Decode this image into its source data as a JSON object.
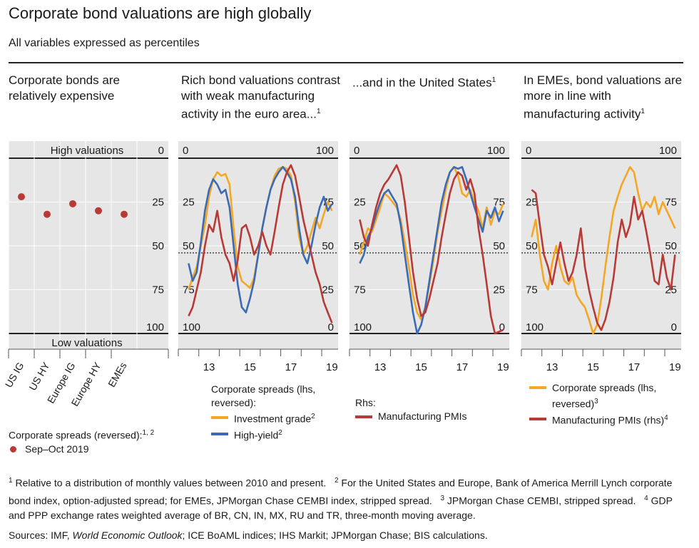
{
  "title": "Corporate bond valuations are high globally",
  "subtitle": "All variables expressed as percentiles",
  "colors": {
    "orange": "#F5A623",
    "blue": "#3A6BB4",
    "red": "#B73A36",
    "panel_bg": "#e6e6e6"
  },
  "panels": [
    {
      "title": "Corporate bonds are relatively expensive",
      "sup": ""
    },
    {
      "title": "Rich bond valuations contrast with weak manufacturing activity in the euro area...",
      "sup": "1"
    },
    {
      "title": "...and in the United States",
      "sup": "1"
    },
    {
      "title": "In EMEs, bond valuations are more in line with manufacturing activity",
      "sup": "1"
    }
  ],
  "panel1": {
    "top_label": "High valuations",
    "bottom_label": "Low valuations",
    "legend_title": "Corporate spreads (reversed):",
    "legend_title_sup": "1, 2",
    "legend_item": "Sep–Oct 2019"
  },
  "panel2_legend": {
    "header": "Corporate spreads (lhs, reversed):",
    "items": [
      {
        "label": "Investment grade",
        "sup": "2"
      },
      {
        "label": "High-yield",
        "sup": "2"
      }
    ]
  },
  "panel3_legend": {
    "header": "Rhs:",
    "items": [
      {
        "label": "Manufacturing PMIs",
        "sup": ""
      }
    ]
  },
  "panel4_legend": {
    "items": [
      {
        "label": "Corporate spreads (lhs, reversed)",
        "sup": "3"
      },
      {
        "label": "Manufacturing PMIs (rhs)",
        "sup": "4"
      }
    ]
  },
  "chart_data": [
    {
      "type": "scatter",
      "categories": [
        "US IG",
        "US HY",
        "Europe IG",
        "Europe HY",
        "EMEs"
      ],
      "series": [
        {
          "name": "Sep–Oct 2019",
          "values": [
            22,
            32,
            26,
            30,
            32
          ]
        }
      ],
      "ylim": [
        0,
        100
      ],
      "y_reversed": true,
      "y_ticks": [
        "0",
        "25",
        "50",
        "75",
        "100"
      ]
    },
    {
      "type": "line",
      "x_ticks": [
        "13",
        "15",
        "17",
        "19"
      ],
      "xlim": [
        2012,
        2019.8
      ],
      "lhs_ticks": [
        "0",
        "25",
        "50",
        "75",
        "100"
      ],
      "rhs_ticks": [
        "100",
        "75",
        "50",
        "25",
        "0"
      ],
      "lhs_reversed": true,
      "reference_line_lhs": 54,
      "series": [
        {
          "name": "Investment grade",
          "axis": "lhs",
          "color": "orange",
          "x": [
            2012.5,
            2012.7,
            2012.9,
            2013.1,
            2013.3,
            2013.5,
            2013.7,
            2013.9,
            2014.1,
            2014.3,
            2014.5,
            2014.7,
            2014.9,
            2015.1,
            2015.3,
            2015.5,
            2015.7,
            2015.9,
            2016.1,
            2016.3,
            2016.5,
            2016.7,
            2016.9,
            2017.1,
            2017.3,
            2017.5,
            2017.7,
            2017.9,
            2018.1,
            2018.3,
            2018.5,
            2018.7,
            2018.9,
            2019.1,
            2019.3,
            2019.5
          ],
          "y": [
            75,
            68,
            62,
            50,
            38,
            22,
            12,
            8,
            10,
            9,
            15,
            40,
            62,
            70,
            72,
            74,
            68,
            55,
            40,
            28,
            18,
            10,
            6,
            5,
            6,
            10,
            25,
            45,
            55,
            50,
            42,
            34,
            40,
            32,
            25,
            30
          ]
        },
        {
          "name": "High-yield",
          "axis": "lhs",
          "color": "blue",
          "x": [
            2012.5,
            2012.7,
            2012.9,
            2013.1,
            2013.3,
            2013.5,
            2013.7,
            2013.9,
            2014.1,
            2014.3,
            2014.5,
            2014.7,
            2014.9,
            2015.1,
            2015.3,
            2015.5,
            2015.7,
            2015.9,
            2016.1,
            2016.3,
            2016.5,
            2016.7,
            2016.9,
            2017.1,
            2017.3,
            2017.5,
            2017.7,
            2017.9,
            2018.1,
            2018.3,
            2018.5,
            2018.7,
            2018.9,
            2019.1,
            2019.3,
            2019.5
          ],
          "y": [
            60,
            70,
            65,
            48,
            30,
            18,
            12,
            15,
            20,
            18,
            28,
            50,
            72,
            85,
            88,
            80,
            70,
            55,
            40,
            28,
            18,
            12,
            8,
            5,
            8,
            12,
            22,
            40,
            55,
            60,
            50,
            38,
            28,
            22,
            30,
            26
          ]
        },
        {
          "name": "Manufacturing PMIs",
          "axis": "rhs",
          "color": "red",
          "x": [
            2012.5,
            2012.7,
            2012.9,
            2013.1,
            2013.3,
            2013.5,
            2013.7,
            2013.9,
            2014.1,
            2014.3,
            2014.5,
            2014.7,
            2014.9,
            2015.1,
            2015.3,
            2015.5,
            2015.7,
            2015.9,
            2016.1,
            2016.3,
            2016.5,
            2016.7,
            2016.9,
            2017.1,
            2017.3,
            2017.5,
            2017.7,
            2017.9,
            2018.1,
            2018.3,
            2018.5,
            2018.7,
            2018.9,
            2019.1,
            2019.3,
            2019.5
          ],
          "y": [
            10,
            15,
            25,
            35,
            50,
            62,
            58,
            70,
            55,
            45,
            40,
            30,
            42,
            60,
            62,
            55,
            45,
            50,
            58,
            50,
            45,
            58,
            72,
            85,
            92,
            96,
            90,
            78,
            65,
            55,
            45,
            35,
            28,
            18,
            12,
            6
          ]
        }
      ]
    },
    {
      "type": "line",
      "x_ticks": [
        "13",
        "15",
        "17",
        "19"
      ],
      "xlim": [
        2012,
        2019.8
      ],
      "lhs_ticks": [
        "0",
        "25",
        "50",
        "75",
        "100"
      ],
      "rhs_ticks": [
        "100",
        "75",
        "50",
        "25",
        "0"
      ],
      "lhs_reversed": true,
      "reference_line_lhs": 54,
      "series": [
        {
          "name": "Investment grade",
          "axis": "lhs",
          "color": "orange",
          "x": [
            2012.5,
            2012.7,
            2012.9,
            2013.1,
            2013.3,
            2013.5,
            2013.7,
            2013.9,
            2014.1,
            2014.3,
            2014.5,
            2014.7,
            2014.9,
            2015.1,
            2015.3,
            2015.5,
            2015.7,
            2015.9,
            2016.1,
            2016.3,
            2016.5,
            2016.7,
            2016.9,
            2017.1,
            2017.3,
            2017.5,
            2017.7,
            2017.9,
            2018.1,
            2018.3,
            2018.5,
            2018.7,
            2018.9,
            2019.1,
            2019.3,
            2019.5
          ],
          "y": [
            55,
            48,
            40,
            42,
            35,
            28,
            20,
            22,
            25,
            28,
            35,
            48,
            62,
            78,
            88,
            92,
            85,
            72,
            58,
            42,
            30,
            18,
            8,
            5,
            10,
            20,
            22,
            18,
            25,
            30,
            40,
            28,
            38,
            30,
            32,
            26
          ]
        },
        {
          "name": "High-yield",
          "axis": "lhs",
          "color": "blue",
          "x": [
            2012.5,
            2012.7,
            2012.9,
            2013.1,
            2013.3,
            2013.5,
            2013.7,
            2013.9,
            2014.1,
            2014.3,
            2014.5,
            2014.7,
            2014.9,
            2015.1,
            2015.3,
            2015.5,
            2015.7,
            2015.9,
            2016.1,
            2016.3,
            2016.5,
            2016.7,
            2016.9,
            2017.1,
            2017.3,
            2017.5,
            2017.7,
            2017.9,
            2018.1,
            2018.3,
            2018.5,
            2018.7,
            2018.9,
            2019.1,
            2019.3,
            2019.5
          ],
          "y": [
            60,
            55,
            45,
            40,
            32,
            25,
            20,
            18,
            22,
            26,
            38,
            55,
            72,
            88,
            100,
            95,
            85,
            70,
            55,
            40,
            25,
            15,
            8,
            5,
            6,
            5,
            12,
            20,
            28,
            35,
            42,
            30,
            34,
            28,
            36,
            30
          ]
        },
        {
          "name": "Manufacturing PMIs",
          "axis": "rhs",
          "color": "red",
          "x": [
            2012.5,
            2012.7,
            2012.9,
            2013.1,
            2013.3,
            2013.5,
            2013.7,
            2013.9,
            2014.1,
            2014.3,
            2014.5,
            2014.7,
            2014.9,
            2015.1,
            2015.3,
            2015.5,
            2015.7,
            2015.9,
            2016.1,
            2016.3,
            2016.5,
            2016.7,
            2016.9,
            2017.1,
            2017.3,
            2017.5,
            2017.7,
            2017.9,
            2018.1,
            2018.3,
            2018.5,
            2018.7,
            2018.9,
            2019.1,
            2019.3,
            2019.5
          ],
          "y": [
            65,
            55,
            50,
            62,
            72,
            80,
            85,
            88,
            92,
            96,
            90,
            75,
            55,
            35,
            20,
            10,
            12,
            20,
            30,
            40,
            55,
            68,
            80,
            88,
            92,
            90,
            82,
            88,
            80,
            60,
            45,
            28,
            10,
            0,
            1,
            2
          ]
        }
      ]
    },
    {
      "type": "line",
      "x_ticks": [
        "13",
        "15",
        "17",
        "19"
      ],
      "xlim": [
        2012,
        2019.8
      ],
      "lhs_ticks": [
        "0",
        "25",
        "50",
        "75",
        "100"
      ],
      "rhs_ticks": [
        "100",
        "75",
        "50",
        "25",
        "0"
      ],
      "lhs_reversed": true,
      "reference_line_lhs": 54,
      "series": [
        {
          "name": "Corporate spreads",
          "axis": "lhs",
          "color": "orange",
          "x": [
            2012.5,
            2012.7,
            2012.9,
            2013.1,
            2013.3,
            2013.5,
            2013.7,
            2013.9,
            2014.1,
            2014.3,
            2014.5,
            2014.7,
            2014.9,
            2015.1,
            2015.3,
            2015.5,
            2015.7,
            2015.9,
            2016.1,
            2016.3,
            2016.5,
            2016.7,
            2016.9,
            2017.1,
            2017.3,
            2017.5,
            2017.7,
            2017.9,
            2018.1,
            2018.3,
            2018.5,
            2018.7,
            2018.9,
            2019.1,
            2019.3,
            2019.5
          ],
          "y": [
            45,
            35,
            55,
            70,
            75,
            60,
            50,
            62,
            70,
            72,
            68,
            78,
            82,
            85,
            92,
            100,
            95,
            80,
            62,
            45,
            30,
            22,
            15,
            10,
            5,
            8,
            20,
            30,
            25,
            28,
            22,
            32,
            25,
            30,
            35,
            40
          ]
        },
        {
          "name": "Manufacturing PMIs",
          "axis": "rhs",
          "color": "red",
          "x": [
            2012.5,
            2012.7,
            2012.9,
            2013.1,
            2013.3,
            2013.5,
            2013.7,
            2013.9,
            2014.1,
            2014.3,
            2014.5,
            2014.7,
            2014.9,
            2015.1,
            2015.3,
            2015.5,
            2015.7,
            2015.9,
            2016.1,
            2016.3,
            2016.5,
            2016.7,
            2016.9,
            2017.1,
            2017.3,
            2017.5,
            2017.7,
            2017.9,
            2018.1,
            2018.3,
            2018.5,
            2018.7,
            2018.9,
            2019.1,
            2019.3,
            2019.5
          ],
          "y": [
            82,
            80,
            62,
            45,
            38,
            28,
            40,
            52,
            40,
            30,
            35,
            45,
            60,
            38,
            25,
            15,
            6,
            2,
            8,
            18,
            32,
            52,
            65,
            55,
            62,
            78,
            65,
            70,
            58,
            45,
            30,
            28,
            45,
            32,
            25,
            45
          ]
        }
      ]
    }
  ],
  "footnotes": [
    {
      "num": "1",
      "text": "Relative to a distribution of monthly values between 2010 and present."
    },
    {
      "num": "2",
      "text": "For the United States and Europe, Bank of America Merrill Lynch corporate bond index, option-adjusted spread; for EMEs, JPMorgan Chase CEMBI index, stripped spread."
    },
    {
      "num": "3",
      "text": "JPMorgan Chase CEMBI, stripped spread."
    },
    {
      "num": "4",
      "text": "GDP and PPP exchange rates weighted average of BR, CN, IN, MX, RU and TR, three-month moving average."
    }
  ],
  "sources": {
    "prefix": "Sources: IMF, ",
    "italic": "World Economic Outlook",
    "rest": "; ICE BoAML indices; IHS Markit; JPMorgan Chase; BIS calculations."
  }
}
